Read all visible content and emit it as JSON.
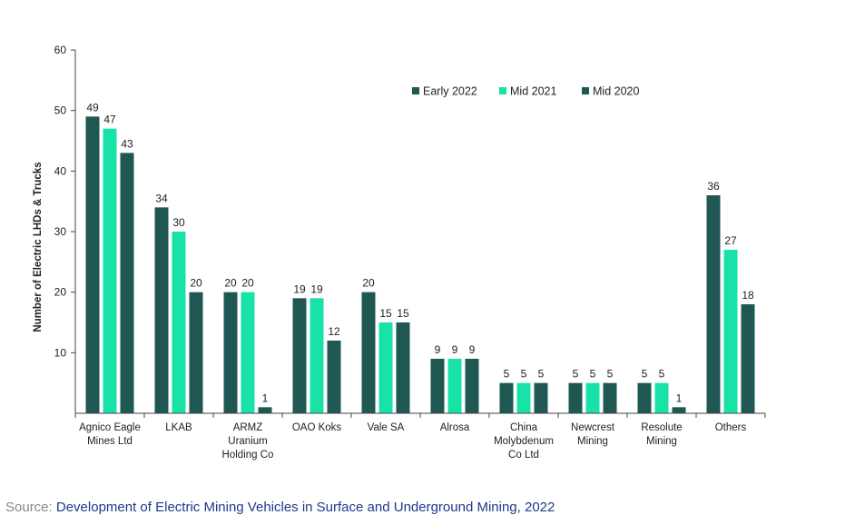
{
  "chart_data": {
    "type": "bar",
    "ylabel": "Number of Electric LHDs & Trucks",
    "ylim": [
      0,
      60
    ],
    "yticks": [
      10,
      20,
      30,
      40,
      50,
      60
    ],
    "grid": false,
    "legend_position": "top-right",
    "categories": [
      "Agnico Eagle Mines Ltd",
      "LKAB",
      "ARMZ Uranium Holding Co",
      "OAO Koks",
      "Vale SA",
      "Alrosa",
      "China Molybdenum Co Ltd",
      "Newcrest Mining",
      "Resolute Mining",
      "Others"
    ],
    "category_lines": [
      [
        "Agnico Eagle",
        "Mines Ltd"
      ],
      [
        "LKAB"
      ],
      [
        "ARMZ",
        "Uranium",
        "Holding Co"
      ],
      [
        "OAO Koks"
      ],
      [
        "Vale SA"
      ],
      [
        "Alrosa"
      ],
      [
        "China",
        "Molybdenum",
        "Co Ltd"
      ],
      [
        "Newcrest",
        "Mining"
      ],
      [
        "Resolute",
        "Mining"
      ],
      [
        "Others"
      ]
    ],
    "series": [
      {
        "name": "Early 2022",
        "color": "#1f5752",
        "values": [
          49,
          34,
          20,
          19,
          20,
          9,
          5,
          5,
          5,
          36
        ]
      },
      {
        "name": "Mid 2021",
        "color": "#19e2a8",
        "values": [
          47,
          30,
          20,
          19,
          15,
          9,
          5,
          5,
          5,
          27
        ]
      },
      {
        "name": "Mid 2020",
        "color": "#1f5752",
        "values": [
          43,
          20,
          1,
          12,
          15,
          9,
          5,
          5,
          1,
          18
        ]
      }
    ]
  },
  "source": {
    "prefix": "Source: ",
    "link_text": "Development of Electric Mining Vehicles in Surface and Underground Mining, 2022"
  }
}
